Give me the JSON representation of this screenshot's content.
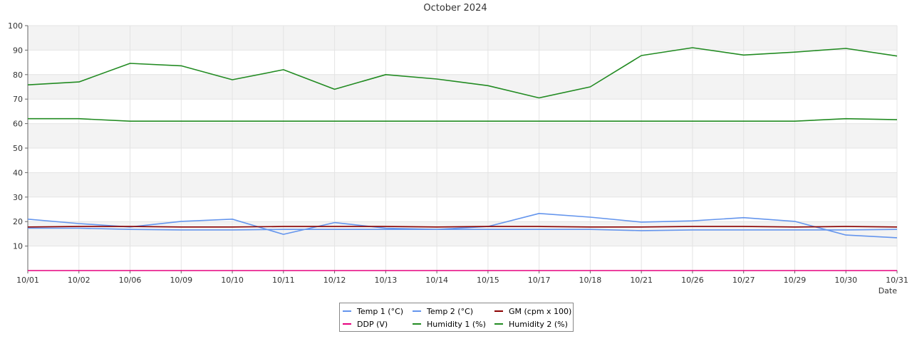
{
  "chart_data": {
    "type": "line",
    "title": "October 2024",
    "xlabel": "Date",
    "ylabel": "",
    "ylim": [
      0,
      100
    ],
    "yticks": [
      10,
      20,
      30,
      40,
      50,
      60,
      70,
      80,
      90,
      100
    ],
    "grid": true,
    "legend_position": "bottom-center",
    "categories": [
      "10/01",
      "10/02",
      "10/06",
      "10/09",
      "10/10",
      "10/11",
      "10/12",
      "10/13",
      "10/14",
      "10/15",
      "10/17",
      "10/18",
      "10/21",
      "10/26",
      "10/27",
      "10/29",
      "10/30",
      "10/31"
    ],
    "series": [
      {
        "name": "Temp 1 (°C)",
        "color": "#6495ed",
        "values": [
          21.0,
          19.2,
          17.8,
          20.1,
          21.0,
          14.8,
          19.6,
          17.3,
          16.8,
          18.0,
          23.3,
          21.8,
          19.8,
          20.3,
          21.6,
          20.1,
          14.5,
          13.4
        ]
      },
      {
        "name": "Temp 2 (°C)",
        "color": "#6495ed",
        "values": [
          17.3,
          17.3,
          16.8,
          16.6,
          16.6,
          16.8,
          16.8,
          16.8,
          16.8,
          16.8,
          16.8,
          16.8,
          16.3,
          16.6,
          16.6,
          16.6,
          16.6,
          16.8
        ]
      },
      {
        "name": "GM (cpm x 100)",
        "color": "#8b0000",
        "values": [
          17.8,
          18.0,
          18.0,
          17.8,
          17.8,
          18.0,
          18.0,
          18.0,
          17.8,
          18.0,
          18.0,
          17.8,
          17.8,
          18.0,
          18.0,
          17.8,
          18.0,
          17.8
        ]
      },
      {
        "name": "DDP (V)",
        "color": "#e6007e",
        "values": [
          0,
          0,
          0,
          0,
          0,
          0,
          0,
          0,
          0,
          0,
          0,
          0,
          0,
          0,
          0,
          0,
          0,
          0
        ]
      },
      {
        "name": "Humidity 1 (%)",
        "color": "#228b22",
        "values": [
          75.8,
          77.0,
          84.6,
          83.6,
          77.9,
          82.0,
          74.0,
          80.0,
          78.2,
          75.5,
          70.5,
          75.0,
          87.8,
          91.0,
          88.0,
          89.2,
          90.7,
          87.6
        ]
      },
      {
        "name": "Humidity 2 (%)",
        "color": "#228b22",
        "values": [
          62.0,
          62.0,
          61.0,
          61.0,
          61.0,
          61.0,
          61.0,
          61.0,
          61.0,
          61.0,
          61.0,
          61.0,
          61.0,
          61.0,
          61.0,
          61.0,
          62.0,
          61.6
        ]
      }
    ]
  }
}
